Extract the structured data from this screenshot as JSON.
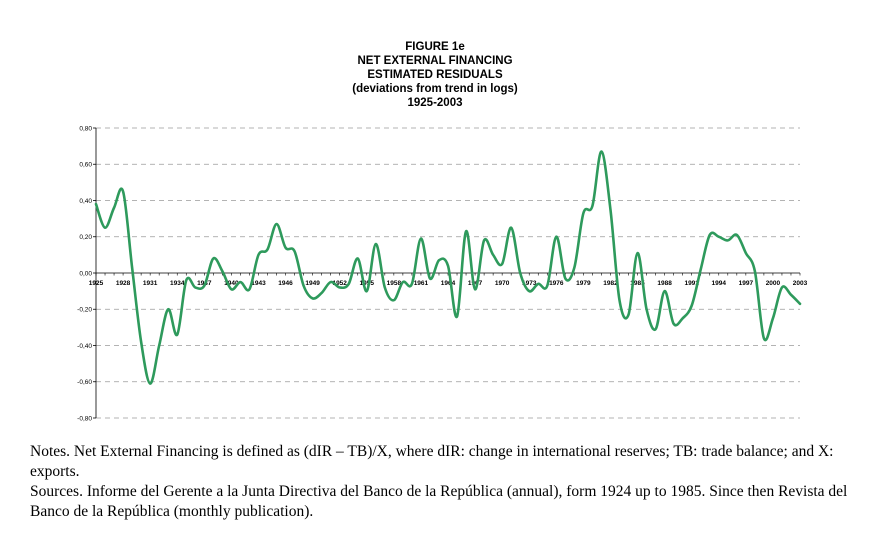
{
  "figure": {
    "title_lines": [
      "FIGURE 1e",
      "NET EXTERNAL FINANCING",
      "ESTIMATED RESIDUALS",
      "(deviations from trend in logs)",
      "1925-2003"
    ]
  },
  "chart_data": {
    "type": "line",
    "title": "NET EXTERNAL FINANCING ESTIMATED RESIDUALS",
    "subtitle": "(deviations from trend in logs) 1925-2003",
    "xlabel": "",
    "ylabel": "",
    "xlim": [
      1925,
      2003
    ],
    "ylim": [
      -0.8,
      0.8
    ],
    "grid": true,
    "legend": "none",
    "line_color": "#2e9a5c",
    "x_tick_labels": [
      "1925",
      "1928",
      "1931",
      "1934",
      "1937",
      "1940",
      "1943",
      "1946",
      "1949",
      "1952",
      "1955",
      "1958",
      "1961",
      "1964",
      "1967",
      "1970",
      "1973",
      "1976",
      "1979",
      "1982",
      "1985",
      "1988",
      "1991",
      "1994",
      "1997",
      "2000",
      "2003"
    ],
    "y_tick_labels": [
      "0,80",
      "0,60",
      "0,40",
      "0,20",
      "0,00",
      "-0,20",
      "-0,40",
      "-0,60",
      "-0,80"
    ],
    "y_tick_values": [
      0.8,
      0.6,
      0.4,
      0.2,
      0.0,
      -0.2,
      -0.4,
      -0.6,
      -0.8
    ],
    "series": [
      {
        "x": [
          1925,
          1926,
          1927,
          1928,
          1929,
          1930,
          1931,
          1932,
          1933,
          1934,
          1935,
          1936,
          1937,
          1938,
          1939,
          1940,
          1941,
          1942,
          1943,
          1944,
          1945,
          1946,
          1947,
          1948,
          1949,
          1950,
          1951,
          1952,
          1953,
          1954,
          1955,
          1956,
          1957,
          1958,
          1959,
          1960,
          1961,
          1962,
          1963,
          1964,
          1965,
          1966,
          1967,
          1968,
          1969,
          1970,
          1971,
          1972,
          1973,
          1974,
          1975,
          1976,
          1977,
          1978,
          1979,
          1980,
          1981,
          1982,
          1983,
          1984,
          1985,
          1986,
          1987,
          1988,
          1989,
          1990,
          1991,
          1992,
          1993,
          1994,
          1995,
          1996,
          1997,
          1998,
          1999,
          2000,
          2001,
          2002,
          2003
        ],
        "values": [
          0.38,
          0.25,
          0.36,
          0.45,
          0.03,
          -0.38,
          -0.61,
          -0.4,
          -0.2,
          -0.34,
          -0.04,
          -0.08,
          -0.07,
          0.08,
          0.01,
          -0.09,
          -0.05,
          -0.09,
          0.1,
          0.13,
          0.27,
          0.14,
          0.12,
          -0.07,
          -0.14,
          -0.11,
          -0.05,
          -0.08,
          -0.06,
          0.08,
          -0.1,
          0.16,
          -0.08,
          -0.15,
          -0.05,
          -0.06,
          0.19,
          -0.03,
          0.07,
          0.04,
          -0.24,
          0.23,
          -0.09,
          0.18,
          0.1,
          0.05,
          0.25,
          0.0,
          -0.1,
          -0.06,
          -0.07,
          0.2,
          -0.03,
          0.03,
          0.33,
          0.37,
          0.67,
          0.35,
          -0.15,
          -0.23,
          0.11,
          -0.2,
          -0.31,
          -0.1,
          -0.28,
          -0.25,
          -0.18,
          0.02,
          0.21,
          0.2,
          0.18,
          0.21,
          0.11,
          0.01,
          -0.36,
          -0.25,
          -0.08,
          -0.12,
          -0.17
        ]
      }
    ]
  },
  "notes": {
    "notes_text": "Notes. Net External Financing is defined as (dIR – TB)/X, where dIR: change in international reserves; TB: trade balance; and X: exports.",
    "sources_text": "Sources. Informe del Gerente a la Junta Directiva del Banco de la República (annual), form 1924 up to 1985. Since then Revista del Banco de la República (monthly publication)."
  }
}
